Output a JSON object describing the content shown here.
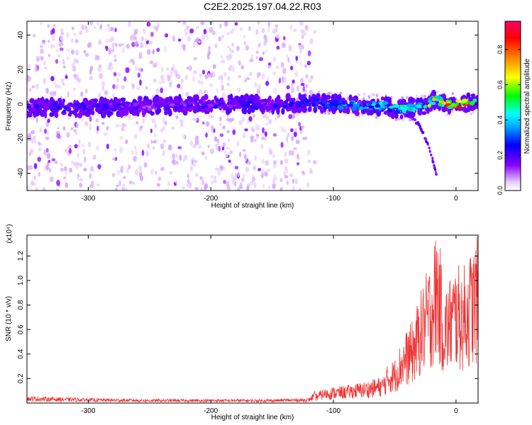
{
  "title": "C2E2.2025.197.04.22.R03",
  "chart_data": [
    {
      "type": "heatmap",
      "title": "C2E2.2025.197.04.22.R03",
      "xlabel": "Height of straight line (km)",
      "ylabel": "Frequency (Hz)",
      "xlim": [
        -350,
        18
      ],
      "ylim": [
        -50,
        48
      ],
      "x_ticks": [
        -300,
        -200,
        -100,
        0
      ],
      "y_ticks": [
        -40,
        -20,
        0,
        20,
        40
      ],
      "colorbar": {
        "label": "Normalized spectral amplitude",
        "range": [
          0,
          0.96
        ],
        "ticks": [
          0,
          0.2,
          0.4,
          0.6,
          0.8
        ],
        "tick_labels": [
          "0.0",
          "0.2",
          "0.4",
          "0.6",
          "0.8"
        ],
        "colormap": [
          "#ffffff",
          "#e6ccff",
          "#8800ff",
          "#0000ff",
          "#00ffff",
          "#00ff00",
          "#ffff00",
          "#ff8800",
          "#ff0000",
          "#ff0088"
        ]
      },
      "ridge": {
        "x": [
          -350,
          -300,
          -250,
          -200,
          -150,
          -120,
          -100,
          -80,
          -60,
          -45,
          -35,
          -25,
          -20,
          -15,
          -10,
          0,
          18
        ],
        "y": [
          -2,
          -2,
          -1,
          0,
          0,
          1,
          0,
          -1,
          -1,
          -3,
          -2,
          -1,
          2,
          3,
          0,
          0,
          1
        ],
        "peak_amplitude": [
          0.25,
          0.25,
          0.2,
          0.25,
          0.25,
          0.3,
          0.35,
          0.4,
          0.5,
          0.5,
          0.6,
          0.5,
          0.7,
          0.7,
          0.85,
          0.9,
          0.9
        ]
      },
      "secondary_branch": {
        "x": [
          -40,
          -30,
          -22,
          -16
        ],
        "y": [
          -5,
          -12,
          -25,
          -40
        ]
      },
      "scatter_noise_extent_km": [
        -350,
        -115
      ]
    },
    {
      "type": "line",
      "xlabel": "Height of straight line (km)",
      "ylabel": "SNR (10 * v/v)",
      "y_multiplier": "(x10⁴)",
      "xlim": [
        -350,
        18
      ],
      "ylim": [
        0,
        1.37
      ],
      "x_ticks": [
        -300,
        -200,
        -100,
        0
      ],
      "y_ticks": [
        0.2,
        0.4,
        0.6,
        0.8,
        1.0,
        1.2
      ],
      "y_tick_labels": [
        "0.2",
        "0.4",
        "0.6",
        "0.8",
        "1.0",
        "1.2"
      ],
      "series": [
        {
          "color": "#ee3333",
          "x": [
            -350,
            -300,
            -250,
            -200,
            -150,
            -120,
            -110,
            -100,
            -90,
            -80,
            -70,
            -60,
            -55,
            -50,
            -45,
            -40,
            -35,
            -30,
            -25,
            -20,
            -17,
            -15,
            -10,
            -5,
            0,
            5,
            10,
            18
          ],
          "y": [
            0.035,
            0.025,
            0.02,
            0.02,
            0.02,
            0.025,
            0.1,
            0.12,
            0.13,
            0.15,
            0.17,
            0.2,
            0.3,
            0.33,
            0.45,
            0.55,
            0.62,
            0.8,
            0.95,
            1.1,
            1.25,
            1.35,
            0.85,
            0.95,
            1.05,
            1.0,
            1.1,
            1.25
          ]
        }
      ]
    }
  ]
}
